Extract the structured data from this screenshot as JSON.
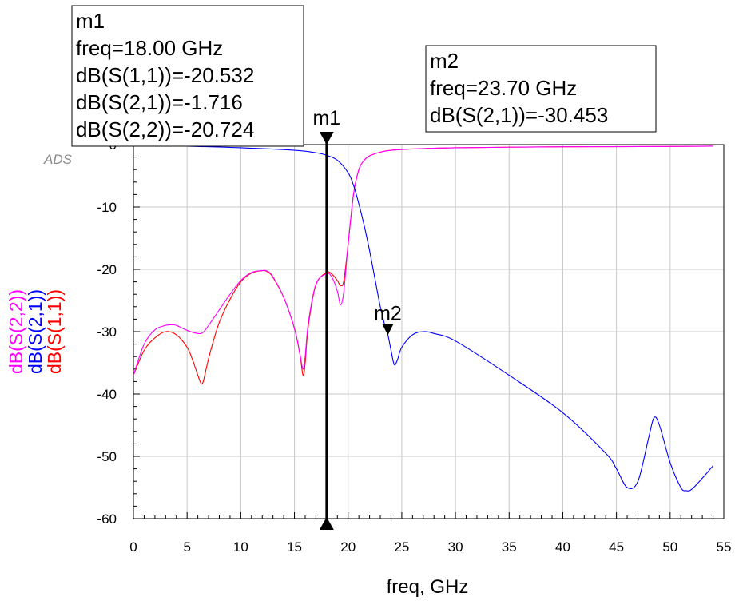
{
  "chart_data": {
    "type": "line",
    "brand": "ADS",
    "xlabel": "freq, GHz",
    "xlim": [
      0,
      55
    ],
    "ylim": [
      -60,
      0
    ],
    "x_ticks": [
      "0",
      "5",
      "10",
      "15",
      "20",
      "25",
      "30",
      "35",
      "40",
      "45",
      "50",
      "55"
    ],
    "y_ticks": [
      "0",
      "-10",
      "-20",
      "-30",
      "-40",
      "-50",
      "-60"
    ],
    "grid": true,
    "ylabel_entries": [
      {
        "text": "dB(S(2,2))",
        "color": "#ff00ff"
      },
      {
        "text": "dB(S(2,1))",
        "color": "#0000ff"
      },
      {
        "text": "dB(S(1,1))",
        "color": "#ff0000"
      }
    ],
    "series": [
      {
        "name": "dB(S(1,1))",
        "color": "#ff0000",
        "x": [
          0,
          1,
          2,
          3,
          4,
          5,
          5.5,
          6,
          6.3,
          6.5,
          6.8,
          7.2,
          8,
          9,
          10,
          11,
          12,
          12.5,
          13,
          14,
          15,
          15.5,
          15.8,
          16.0,
          16.3,
          17,
          18,
          18.5,
          19,
          19.3,
          19.6,
          20,
          20.5,
          21,
          21.5,
          22,
          23,
          24,
          26,
          30,
          40,
          50,
          54
        ],
        "y": [
          -37,
          -33,
          -31,
          -30,
          -30.5,
          -32.5,
          -34.5,
          -37,
          -38.3,
          -38,
          -35.8,
          -33,
          -28.5,
          -24.8,
          -22,
          -20.6,
          -20.2,
          -20.4,
          -21.3,
          -24.5,
          -29.5,
          -33.5,
          -37,
          -35,
          -29,
          -22.5,
          -20.5,
          -20.8,
          -21.8,
          -22.6,
          -21.8,
          -16,
          -8,
          -4,
          -2.5,
          -1.8,
          -1.2,
          -0.9,
          -0.7,
          -0.5,
          -0.35,
          -0.3,
          -0.25
        ]
      },
      {
        "name": "dB(S(2,2))",
        "color": "#ff00ff",
        "x": [
          0,
          1,
          2,
          3,
          3.5,
          4,
          5,
          6,
          6.5,
          7,
          8,
          9,
          10,
          11,
          12,
          12.5,
          13,
          14,
          15,
          15.5,
          15.8,
          16.0,
          16.3,
          17,
          18,
          18.5,
          19,
          19.3,
          19.6,
          20,
          20.5,
          21,
          21.5,
          22,
          23,
          24,
          26,
          30,
          40,
          50,
          54
        ],
        "y": [
          -37,
          -32,
          -29.7,
          -29,
          -28.9,
          -29,
          -29.8,
          -30.3,
          -30.1,
          -29,
          -26.5,
          -24,
          -21.8,
          -20.5,
          -20.2,
          -20.3,
          -21.2,
          -24.5,
          -29.5,
          -33.5,
          -36,
          -34,
          -28.5,
          -22.4,
          -20.7,
          -21.3,
          -23.5,
          -25.7,
          -23.5,
          -16,
          -8,
          -4,
          -2.5,
          -1.8,
          -1.2,
          -0.9,
          -0.7,
          -0.5,
          -0.35,
          -0.3,
          -0.25
        ]
      },
      {
        "name": "dB(S(2,1))",
        "color": "#0000ff",
        "x": [
          0,
          2,
          5,
          10,
          15,
          17,
          18,
          19,
          20,
          20.5,
          21,
          21.5,
          22,
          22.5,
          23,
          23.5,
          23.7,
          24,
          24.3,
          24.6,
          25,
          26,
          27,
          28,
          30,
          35,
          40,
          44,
          45,
          46,
          47,
          48,
          48.5,
          49,
          50,
          51,
          51.5,
          52,
          53,
          54
        ],
        "y": [
          -0.05,
          -0.1,
          -0.25,
          -0.5,
          -0.9,
          -1.3,
          -1.716,
          -2.5,
          -4.5,
          -6.5,
          -9.5,
          -13,
          -17,
          -21.5,
          -26,
          -29.5,
          -30.453,
          -33,
          -35.3,
          -34.5,
          -32.5,
          -30.5,
          -30,
          -30.3,
          -31.5,
          -37,
          -43,
          -49.5,
          -52,
          -55,
          -54,
          -47,
          -43.8,
          -45,
          -51,
          -55,
          -55.5,
          -55.3,
          -53.5,
          -51.5
        ]
      }
    ],
    "markers": [
      {
        "id": "m1",
        "freq": 18.0,
        "kind": "vertical",
        "lines": [
          "m1",
          "freq=18.00 GHz",
          "dB(S(1,1))=-20.532",
          "dB(S(2,1))=-1.716",
          "dB(S(2,2))=-20.724"
        ]
      },
      {
        "id": "m2",
        "freq": 23.7,
        "value": -30.453,
        "kind": "point",
        "lines": [
          "m2",
          "freq=23.70 GHz",
          "dB(S(2,1))=-30.453"
        ]
      }
    ]
  }
}
